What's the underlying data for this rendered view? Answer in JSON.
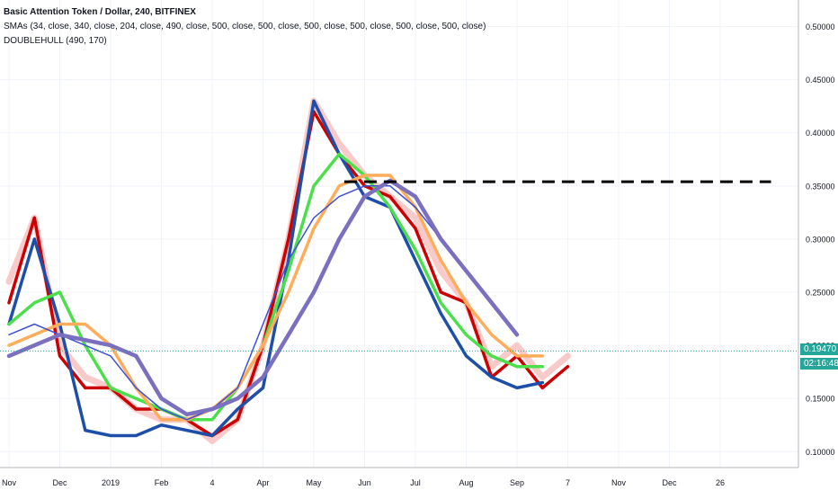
{
  "legend": {
    "title": "Basic Attention Token / Dollar, 240, BITFINEX",
    "sma": "SMAs (34, close, 340, close, 204, close, 490, close, 500, close, 500, close, 500, close, 500, close, 500, close, 500, close)",
    "hull": "DOUBLEHULL (490, 170)"
  },
  "badges": {
    "last_price": "0.19470",
    "countdown": "02:16:48",
    "last_price_value": 0.1947,
    "price_color": "#26a69a",
    "countdown_color": "#26a69a"
  },
  "chart_data": {
    "type": "line",
    "x_ticks": [
      "Nov",
      "Dec",
      "2019",
      "Feb",
      "4",
      "Apr",
      "May",
      "Jun",
      "Jul",
      "Aug",
      "Sep",
      "7",
      "Nov",
      "Dec",
      "26"
    ],
    "y_ticks": [
      "0.10000",
      "0.15000",
      "0.20000",
      "0.25000",
      "0.30000",
      "0.35000",
      "0.40000",
      "0.45000",
      "0.50000"
    ],
    "ylim": [
      0.085,
      0.525
    ],
    "grid": true,
    "x": [
      0,
      0.5,
      1,
      1.5,
      2,
      2.5,
      3,
      3.5,
      4,
      4.5,
      5,
      5.5,
      6,
      6.5,
      7,
      7.5,
      8,
      8.5,
      9,
      9.5,
      10,
      10.5,
      11
    ],
    "series": [
      {
        "color": "#f8c4c4",
        "values": [
          0.26,
          0.32,
          0.2,
          0.17,
          0.16,
          0.14,
          0.13,
          0.13,
          0.11,
          0.13,
          0.2,
          0.3,
          0.43,
          0.39,
          0.36,
          0.34,
          0.32,
          0.27,
          0.24,
          0.18,
          0.2,
          0.17,
          0.19
        ]
      },
      {
        "color": "#cc0000",
        "values": [
          0.24,
          0.32,
          0.19,
          0.16,
          0.16,
          0.14,
          0.14,
          0.13,
          0.115,
          0.13,
          0.2,
          0.3,
          0.42,
          0.38,
          0.35,
          0.34,
          0.31,
          0.25,
          0.24,
          0.17,
          0.19,
          0.16,
          0.18
        ]
      },
      {
        "color": "#1e4fa8",
        "values": [
          0.22,
          0.3,
          0.22,
          0.12,
          0.115,
          0.115,
          0.125,
          0.12,
          0.115,
          0.14,
          0.16,
          0.28,
          0.43,
          0.38,
          0.34,
          0.33,
          0.28,
          0.23,
          0.19,
          0.17,
          0.16,
          0.165,
          null
        ]
      },
      {
        "color": "#4cdf4c",
        "values": [
          0.22,
          0.24,
          0.25,
          0.2,
          0.16,
          0.15,
          0.14,
          0.13,
          0.13,
          0.16,
          0.2,
          0.27,
          0.35,
          0.38,
          0.36,
          0.33,
          0.29,
          0.24,
          0.21,
          0.19,
          0.18,
          0.18,
          null
        ]
      },
      {
        "color": "#ffad5b",
        "values": [
          0.2,
          0.21,
          0.22,
          0.22,
          0.2,
          0.16,
          0.13,
          0.13,
          0.14,
          0.16,
          0.2,
          0.25,
          0.31,
          0.35,
          0.36,
          0.36,
          0.33,
          0.28,
          0.24,
          0.21,
          0.19,
          0.19,
          null
        ]
      },
      {
        "color": "#3f51d3",
        "values": [
          0.21,
          0.22,
          0.21,
          0.2,
          0.19,
          0.16,
          0.14,
          0.13,
          0.14,
          0.16,
          0.22,
          0.28,
          0.32,
          0.34,
          0.35,
          0.35,
          0.33,
          0.3,
          0.27,
          0.24,
          0.21,
          null,
          null
        ]
      },
      {
        "color": "#7b6fbf",
        "values": [
          0.19,
          0.2,
          0.21,
          0.205,
          0.2,
          0.19,
          0.15,
          0.135,
          0.14,
          0.15,
          0.17,
          0.21,
          0.25,
          0.3,
          0.34,
          0.355,
          0.34,
          0.3,
          0.27,
          0.24,
          0.21,
          null,
          null
        ]
      }
    ],
    "dashed_line": {
      "value": 0.354,
      "x_start": 6.6,
      "x_end": 15,
      "color": "#000000"
    }
  }
}
